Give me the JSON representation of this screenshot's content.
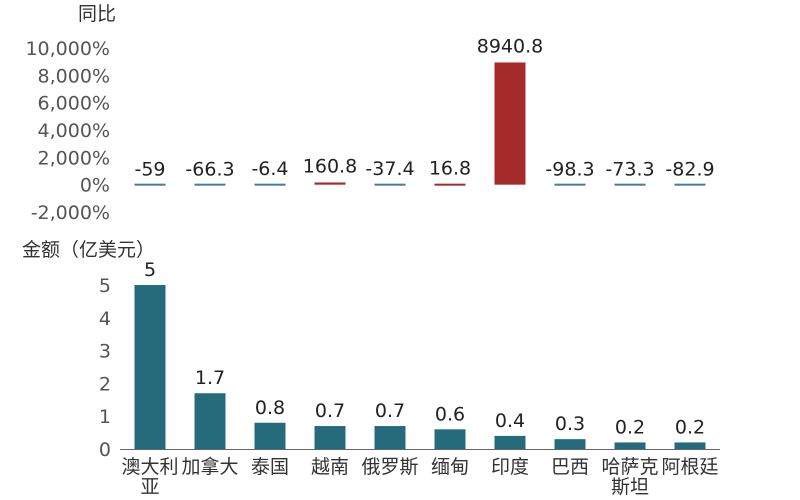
{
  "chart_data": [
    {
      "type": "bar",
      "ylabel": "同比",
      "categories": [
        "澳大利亚",
        "加拿大",
        "泰国",
        "越南",
        "俄罗斯",
        "缅甸",
        "印度",
        "巴西",
        "哈萨克斯坦",
        "阿根廷"
      ],
      "values": [
        -59,
        -66.3,
        -6.4,
        160.8,
        -37.4,
        16.8,
        8940.8,
        -98.3,
        -73.3,
        -82.9
      ],
      "data_labels": [
        "-59",
        "-66.3",
        "-6.4",
        "160.8",
        "-37.4",
        "16.8",
        "8940.8",
        "-98.3",
        "-73.3",
        "-82.9"
      ],
      "ylim": [
        -2000,
        10000
      ],
      "yticks": [
        "10,000%",
        "8,000%",
        "6,000%",
        "4,000%",
        "2,000%",
        "0%",
        "-2,000%"
      ],
      "ytick_values": [
        10000,
        8000,
        6000,
        4000,
        2000,
        0,
        -2000
      ],
      "colors": {
        "positive": "#a52a2a",
        "negative": "#4a7aa0"
      }
    },
    {
      "type": "bar",
      "ylabel": "金额（亿美元）",
      "categories": [
        "澳大利亚",
        "加拿大",
        "泰国",
        "越南",
        "俄罗斯",
        "缅甸",
        "印度",
        "巴西",
        "哈萨克斯坦",
        "阿根廷"
      ],
      "category_lines": [
        [
          "澳大利",
          "亚"
        ],
        [
          "加拿大"
        ],
        [
          "泰国"
        ],
        [
          "越南"
        ],
        [
          "俄罗斯"
        ],
        [
          "缅甸"
        ],
        [
          "印度"
        ],
        [
          "巴西"
        ],
        [
          "哈萨克",
          "斯坦"
        ],
        [
          "阿根廷"
        ]
      ],
      "values": [
        5,
        1.7,
        0.8,
        0.7,
        0.7,
        0.6,
        0.4,
        0.3,
        0.2,
        0.2
      ],
      "data_labels": [
        "5",
        "1.7",
        "0.8",
        "0.7",
        "0.7",
        "0.6",
        "0.4",
        "0.3",
        "0.2",
        "0.2"
      ],
      "ylim": [
        0,
        5
      ],
      "yticks": [
        "5",
        "4",
        "3",
        "2",
        "1",
        "0"
      ],
      "ytick_values": [
        5,
        4,
        3,
        2,
        1,
        0
      ],
      "colors": {
        "bar": "#266b7c"
      }
    }
  ]
}
